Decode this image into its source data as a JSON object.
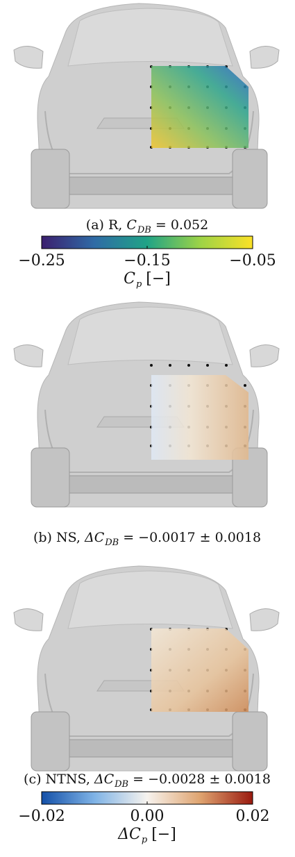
{
  "panels": [
    {
      "caption": {
        "prefix": "(a) R,",
        "symbol": "C",
        "subscript": "DB",
        "suffix": "= 0.052"
      }
    },
    {
      "caption": {
        "prefix": "(b) NS,",
        "symbol": "ΔC",
        "subscript": "DB",
        "suffix": "= −0.0017 ± 0.0018"
      }
    },
    {
      "caption": {
        "prefix": "(c) NTNS,",
        "symbol": "ΔC",
        "subscript": "DB",
        "suffix": "= −0.0028 ± 0.0018"
      }
    }
  ],
  "colorbars": [
    {
      "range": [
        -0.25,
        -0.05
      ],
      "ticks": [
        {
          "value": -0.25,
          "label": "−0.25"
        },
        {
          "value": -0.15,
          "label": "−0.15"
        },
        {
          "value": -0.05,
          "label": "−0.05"
        }
      ],
      "label": {
        "symbol": "C",
        "subscript": "p",
        "unit": "[−]"
      }
    },
    {
      "range": [
        -0.02,
        0.02
      ],
      "ticks": [
        {
          "value": -0.02,
          "label": "−0.02"
        },
        {
          "value": 0,
          "label": "0.00"
        },
        0.02
      ],
      "label": {
        "symbol": "ΔC",
        "subscript": "p",
        "unit": "[−]"
      }
    }
  ]
}
